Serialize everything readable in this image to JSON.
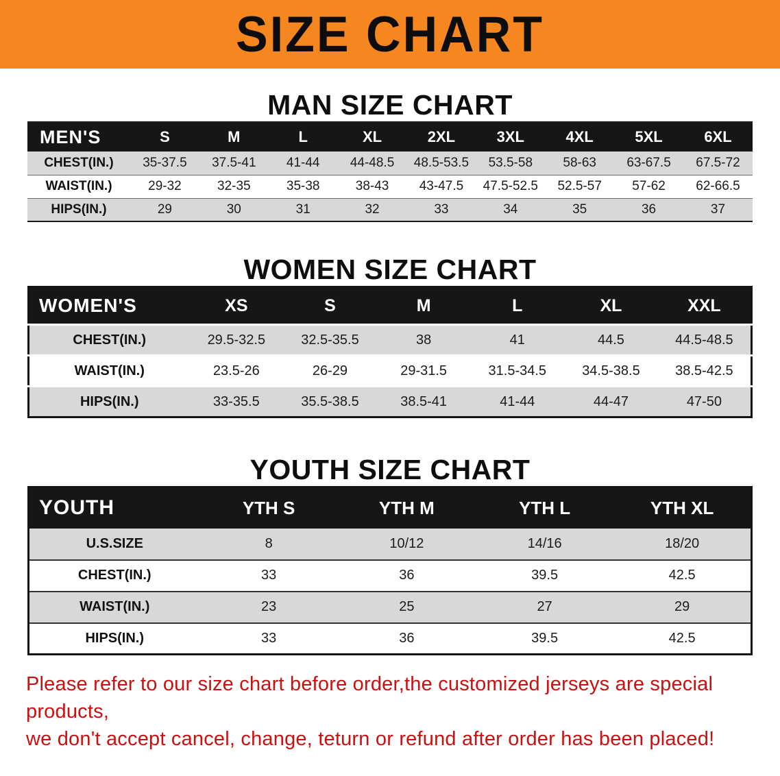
{
  "theme": {
    "banner_bg": "#f6861f",
    "table_header_bg": "#161616",
    "stripe_gray": "#d8d8d8",
    "disclaimer_red": "#cc0f0f"
  },
  "banner": {
    "title": "SIZE CHART"
  },
  "sections": [
    {
      "heading": "MAN SIZE CHART",
      "table": {
        "header": [
          "MEN'S",
          "S",
          "M",
          "L",
          "XL",
          "2XL",
          "3XL",
          "4XL",
          "5XL",
          "6XL"
        ],
        "rows": [
          [
            "CHEST(IN.)",
            "35-37.5",
            "37.5-41",
            "41-44",
            "44-48.5",
            "48.5-53.5",
            "53.5-58",
            "58-63",
            "63-67.5",
            "67.5-72"
          ],
          [
            "WAIST(IN.)",
            "29-32",
            "32-35",
            "35-38",
            "38-43",
            "43-47.5",
            "47.5-52.5",
            "52.5-57",
            "57-62",
            "62-66.5"
          ],
          [
            "HIPS(IN.)",
            "29",
            "30",
            "31",
            "32",
            "33",
            "34",
            "35",
            "36",
            "37"
          ]
        ]
      }
    },
    {
      "heading": "WOMEN SIZE CHART",
      "table": {
        "header": [
          "WOMEN'S",
          "XS",
          "S",
          "M",
          "L",
          "XL",
          "XXL"
        ],
        "rows": [
          [
            "CHEST(IN.)",
            "29.5-32.5",
            "32.5-35.5",
            "38",
            "41",
            "44.5",
            "44.5-48.5"
          ],
          [
            "WAIST(IN.)",
            "23.5-26",
            "26-29",
            "29-31.5",
            "31.5-34.5",
            "34.5-38.5",
            "38.5-42.5"
          ],
          [
            "HIPS(IN.)",
            "33-35.5",
            "35.5-38.5",
            "38.5-41",
            "41-44",
            "44-47",
            "47-50"
          ]
        ]
      }
    },
    {
      "heading": "YOUTH SIZE CHART",
      "table": {
        "header": [
          "YOUTH",
          "YTH S",
          "YTH M",
          "YTH L",
          "YTH XL"
        ],
        "rows": [
          [
            "U.S.SIZE",
            "8",
            "10/12",
            "14/16",
            "18/20"
          ],
          [
            "CHEST(IN.)",
            "33",
            "36",
            "39.5",
            "42.5"
          ],
          [
            "WAIST(IN.)",
            "23",
            "25",
            "27",
            "29"
          ],
          [
            "HIPS(IN.)",
            "33",
            "36",
            "39.5",
            "42.5"
          ]
        ]
      }
    }
  ],
  "disclaimer": {
    "line1": "Please refer to our size chart before order,the customized jerseys are special products,",
    "line2": "we don't accept cancel, change, teturn or refund after order has been placed!"
  }
}
